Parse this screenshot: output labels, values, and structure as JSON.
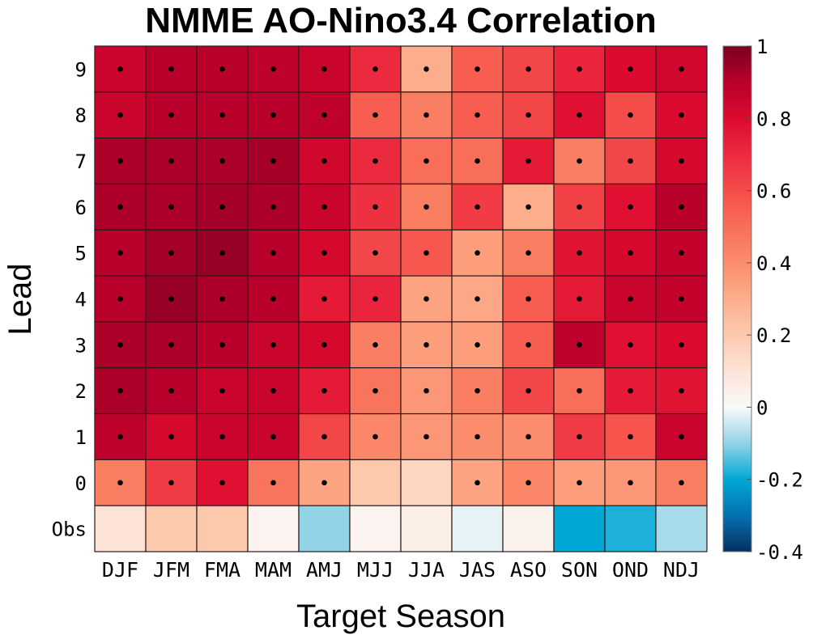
{
  "chart_data": {
    "type": "heatmap",
    "title": "NMME AO-Nino3.4 Correlation",
    "xlabel": "Target Season",
    "ylabel": "Lead",
    "x_categories": [
      "DJF",
      "JFM",
      "FMA",
      "MAM",
      "AMJ",
      "MJJ",
      "JJA",
      "JAS",
      "ASO",
      "SON",
      "OND",
      "NDJ"
    ],
    "y_categories_top_to_bottom": [
      "9",
      "8",
      "7",
      "6",
      "5",
      "4",
      "3",
      "2",
      "1",
      "0",
      "Obs"
    ],
    "values": [
      [
        0.85,
        0.9,
        0.9,
        0.88,
        0.85,
        0.7,
        0.3,
        0.55,
        0.62,
        0.72,
        0.8,
        0.83
      ],
      [
        0.85,
        0.9,
        0.9,
        0.9,
        0.88,
        0.55,
        0.45,
        0.55,
        0.62,
        0.78,
        0.6,
        0.8
      ],
      [
        0.92,
        0.92,
        0.92,
        0.93,
        0.83,
        0.7,
        0.5,
        0.5,
        0.75,
        0.45,
        0.62,
        0.82
      ],
      [
        0.92,
        0.92,
        0.93,
        0.92,
        0.85,
        0.68,
        0.45,
        0.65,
        0.3,
        0.63,
        0.78,
        0.9
      ],
      [
        0.9,
        0.93,
        0.95,
        0.9,
        0.82,
        0.62,
        0.57,
        0.35,
        0.45,
        0.77,
        0.82,
        0.87
      ],
      [
        0.9,
        0.95,
        0.92,
        0.9,
        0.75,
        0.72,
        0.33,
        0.32,
        0.55,
        0.75,
        0.85,
        0.87
      ],
      [
        0.92,
        0.92,
        0.9,
        0.85,
        0.82,
        0.45,
        0.35,
        0.35,
        0.55,
        0.88,
        0.78,
        0.8
      ],
      [
        0.92,
        0.9,
        0.85,
        0.85,
        0.75,
        0.48,
        0.37,
        0.45,
        0.62,
        0.5,
        0.75,
        0.77
      ],
      [
        0.88,
        0.82,
        0.85,
        0.85,
        0.62,
        0.42,
        0.37,
        0.4,
        0.4,
        0.65,
        0.58,
        0.85
      ],
      [
        0.45,
        0.65,
        0.78,
        0.48,
        0.33,
        0.2,
        0.15,
        0.33,
        0.42,
        0.35,
        0.37,
        0.45
      ],
      [
        0.1,
        0.2,
        0.2,
        0.03,
        -0.1,
        0.03,
        0.05,
        -0.02,
        0.04,
        -0.2,
        -0.18,
        -0.08
      ]
    ],
    "significant": [
      [
        1,
        1,
        1,
        1,
        1,
        1,
        1,
        1,
        1,
        1,
        1,
        1
      ],
      [
        1,
        1,
        1,
        1,
        1,
        1,
        1,
        1,
        1,
        1,
        1,
        1
      ],
      [
        1,
        1,
        1,
        1,
        1,
        1,
        1,
        1,
        1,
        1,
        1,
        1
      ],
      [
        1,
        1,
        1,
        1,
        1,
        1,
        1,
        1,
        1,
        1,
        1,
        1
      ],
      [
        1,
        1,
        1,
        1,
        1,
        1,
        1,
        1,
        1,
        1,
        1,
        1
      ],
      [
        1,
        1,
        1,
        1,
        1,
        1,
        1,
        1,
        1,
        1,
        1,
        1
      ],
      [
        1,
        1,
        1,
        1,
        1,
        1,
        1,
        1,
        1,
        1,
        1,
        1
      ],
      [
        1,
        1,
        1,
        1,
        1,
        1,
        1,
        1,
        1,
        1,
        1,
        1
      ],
      [
        1,
        1,
        1,
        1,
        1,
        1,
        1,
        1,
        1,
        1,
        1,
        1
      ],
      [
        1,
        1,
        1,
        1,
        1,
        0,
        0,
        1,
        1,
        1,
        1,
        1
      ],
      [
        0,
        0,
        0,
        0,
        0,
        0,
        0,
        0,
        0,
        0,
        0,
        0
      ]
    ],
    "colorbar": {
      "range": [
        -0.4,
        1
      ],
      "ticks": [
        1,
        0.8,
        0.6,
        0.4,
        0.2,
        0,
        -0.2,
        -0.4
      ],
      "tick_labels": [
        "1",
        "0.8",
        "0.6",
        "0.4",
        "0.2",
        "0",
        "-0.2",
        "-0.4"
      ],
      "placement": "right",
      "colormap_stops": [
        {
          "value": -0.4,
          "color": "#053061"
        },
        {
          "value": -0.3,
          "color": "#0571b0"
        },
        {
          "value": -0.2,
          "color": "#00a8d6"
        },
        {
          "value": -0.1,
          "color": "#92d3e8"
        },
        {
          "value": 0.0,
          "color": "#fafafa"
        },
        {
          "value": 0.1,
          "color": "#fde3d6"
        },
        {
          "value": 0.2,
          "color": "#fcc9ad"
        },
        {
          "value": 0.3,
          "color": "#fcae8c"
        },
        {
          "value": 0.4,
          "color": "#fb8d6c"
        },
        {
          "value": 0.5,
          "color": "#f96e58"
        },
        {
          "value": 0.6,
          "color": "#f54d4a"
        },
        {
          "value": 0.7,
          "color": "#ec2a3f"
        },
        {
          "value": 0.8,
          "color": "#dc0a2f"
        },
        {
          "value": 0.9,
          "color": "#b8002a"
        },
        {
          "value": 1.0,
          "color": "#7a0022"
        }
      ]
    },
    "grid": true,
    "significance_marker": "black dot"
  }
}
